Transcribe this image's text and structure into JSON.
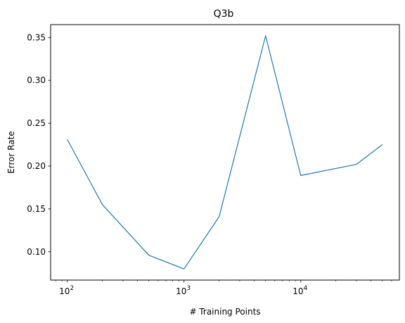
{
  "chart_data": {
    "type": "line",
    "title": "Q3b",
    "xlabel": "# Training Points",
    "ylabel": "Error Rate",
    "x_scale": "log",
    "xlim": [
      72,
      70000
    ],
    "ylim": [
      0.067,
      0.365
    ],
    "x_ticks": [
      {
        "value": 100,
        "base": "10",
        "exp": "2"
      },
      {
        "value": 1000,
        "base": "10",
        "exp": "3"
      },
      {
        "value": 10000,
        "base": "10",
        "exp": "4"
      }
    ],
    "y_ticks": [
      {
        "value": 0.1,
        "label": "0.10"
      },
      {
        "value": 0.15,
        "label": "0.15"
      },
      {
        "value": 0.2,
        "label": "0.20"
      },
      {
        "value": 0.25,
        "label": "0.25"
      },
      {
        "value": 0.3,
        "label": "0.30"
      },
      {
        "value": 0.35,
        "label": "0.35"
      }
    ],
    "grid": false,
    "series": [
      {
        "color": "#1f77b4",
        "x": [
          100,
          200,
          500,
          1000,
          2000,
          5000,
          10000,
          30000,
          50000
        ],
        "y": [
          0.231,
          0.155,
          0.096,
          0.08,
          0.141,
          0.352,
          0.189,
          0.202,
          0.225
        ]
      }
    ]
  }
}
